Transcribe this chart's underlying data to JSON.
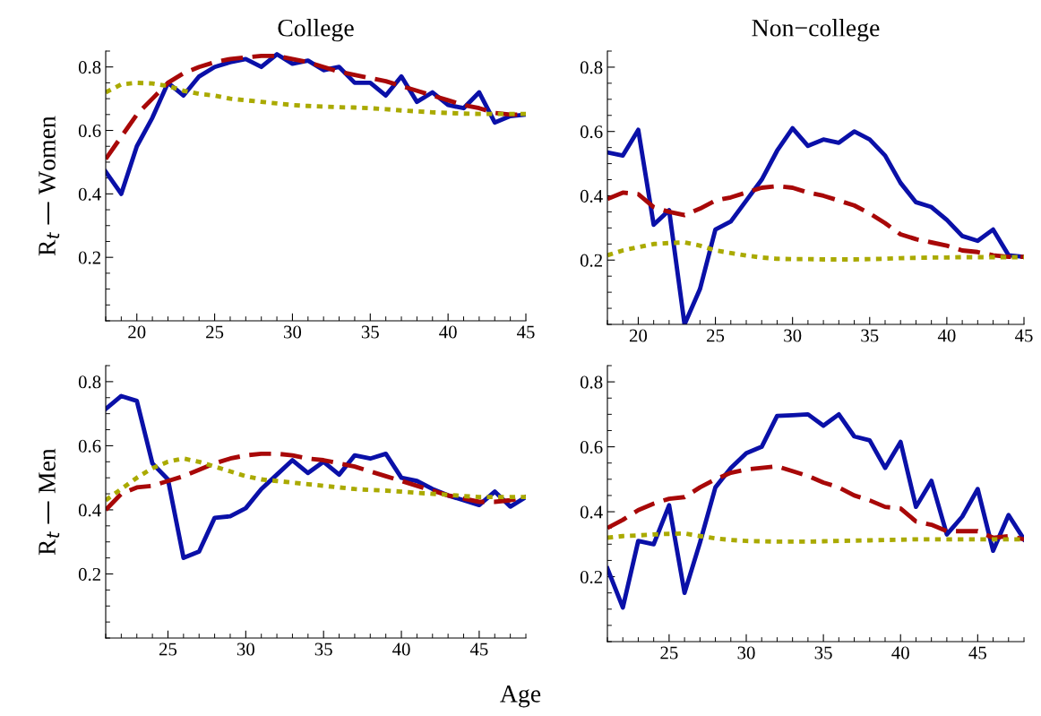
{
  "chart_data": [
    {
      "type": "line",
      "title": "College",
      "ylabel": "R$_{t}$ — Women",
      "x": [
        18,
        19,
        20,
        21,
        22,
        23,
        24,
        25,
        26,
        27,
        28,
        29,
        30,
        31,
        32,
        33,
        34,
        35,
        36,
        37,
        38,
        39,
        40,
        41,
        42,
        43,
        44,
        45
      ],
      "xlim": [
        18,
        45
      ],
      "xticks": [
        20,
        25,
        30,
        35,
        40,
        45
      ],
      "ylim": [
        0,
        0.85
      ],
      "yticks": [
        0.2,
        0.4,
        0.6,
        0.8
      ],
      "series": [
        {
          "color": "#0a10a8",
          "line_style": "solid",
          "values": [
            0.47,
            0.4,
            0.55,
            0.64,
            0.75,
            0.71,
            0.77,
            0.8,
            0.815,
            0.825,
            0.8,
            0.84,
            0.81,
            0.82,
            0.79,
            0.8,
            0.75,
            0.75,
            0.71,
            0.77,
            0.69,
            0.72,
            0.68,
            0.67,
            0.72,
            0.625,
            0.645,
            0.65
          ]
        },
        {
          "color": "#a80808",
          "line_style": "dashed",
          "values": [
            0.51,
            0.58,
            0.65,
            0.7,
            0.75,
            0.78,
            0.8,
            0.815,
            0.825,
            0.83,
            0.835,
            0.835,
            0.825,
            0.815,
            0.8,
            0.785,
            0.775,
            0.765,
            0.755,
            0.74,
            0.725,
            0.71,
            0.695,
            0.68,
            0.67,
            0.655,
            0.65,
            0.65
          ]
        },
        {
          "color": "#aaaa00",
          "line_style": "dotted",
          "values": [
            0.72,
            0.745,
            0.75,
            0.748,
            0.74,
            0.725,
            0.715,
            0.71,
            0.7,
            0.695,
            0.69,
            0.685,
            0.68,
            0.677,
            0.675,
            0.673,
            0.672,
            0.67,
            0.667,
            0.663,
            0.66,
            0.657,
            0.655,
            0.653,
            0.652,
            0.652,
            0.652,
            0.652
          ]
        }
      ]
    },
    {
      "type": "line",
      "title": "Non−college",
      "x": [
        18,
        19,
        20,
        21,
        22,
        23,
        24,
        25,
        26,
        27,
        28,
        29,
        30,
        31,
        32,
        33,
        34,
        35,
        36,
        37,
        38,
        39,
        40,
        41,
        42,
        43,
        44,
        45
      ],
      "xlim": [
        18,
        45
      ],
      "xticks": [
        20,
        25,
        30,
        35,
        40,
        45
      ],
      "ylim": [
        0,
        0.85
      ],
      "yticks": [
        0.2,
        0.4,
        0.6,
        0.8
      ],
      "series": [
        {
          "color": "#0a10a8",
          "line_style": "solid",
          "values": [
            0.535,
            0.525,
            0.605,
            0.31,
            0.355,
            0.0,
            0.11,
            0.295,
            0.32,
            0.385,
            0.45,
            0.54,
            0.61,
            0.555,
            0.575,
            0.565,
            0.6,
            0.575,
            0.525,
            0.44,
            0.38,
            0.365,
            0.325,
            0.275,
            0.26,
            0.295,
            0.215,
            0.21
          ]
        },
        {
          "color": "#a80808",
          "line_style": "dashed",
          "values": [
            0.39,
            0.41,
            0.405,
            0.365,
            0.35,
            0.34,
            0.36,
            0.385,
            0.395,
            0.41,
            0.425,
            0.43,
            0.425,
            0.41,
            0.4,
            0.385,
            0.37,
            0.345,
            0.315,
            0.28,
            0.265,
            0.255,
            0.245,
            0.23,
            0.225,
            0.215,
            0.21,
            0.21
          ]
        },
        {
          "color": "#aaaa00",
          "line_style": "dotted",
          "values": [
            0.215,
            0.23,
            0.24,
            0.25,
            0.253,
            0.255,
            0.245,
            0.23,
            0.222,
            0.214,
            0.208,
            0.204,
            0.203,
            0.203,
            0.202,
            0.202,
            0.202,
            0.203,
            0.204,
            0.206,
            0.207,
            0.208,
            0.208,
            0.209,
            0.209,
            0.209,
            0.209,
            0.209
          ]
        }
      ]
    },
    {
      "type": "line",
      "ylabel": "R$_{t}$ — Men",
      "xlabel": "Age",
      "x": [
        21,
        22,
        23,
        24,
        25,
        26,
        27,
        28,
        29,
        30,
        31,
        32,
        33,
        34,
        35,
        36,
        37,
        38,
        39,
        40,
        41,
        42,
        43,
        44,
        45,
        46,
        47,
        48
      ],
      "xlim": [
        21,
        48
      ],
      "xticks": [
        25,
        30,
        35,
        40,
        45
      ],
      "ylim": [
        0,
        0.85
      ],
      "yticks": [
        0.2,
        0.4,
        0.6,
        0.8
      ],
      "series": [
        {
          "color": "#0a10a8",
          "line_style": "solid",
          "values": [
            0.715,
            0.755,
            0.74,
            0.545,
            0.495,
            0.25,
            0.27,
            0.375,
            0.38,
            0.405,
            0.465,
            0.51,
            0.555,
            0.515,
            0.55,
            0.51,
            0.57,
            0.56,
            0.575,
            0.5,
            0.49,
            0.465,
            0.445,
            0.43,
            0.415,
            0.457,
            0.41,
            0.44
          ]
        },
        {
          "color": "#a80808",
          "line_style": "dashed",
          "values": [
            0.4,
            0.45,
            0.47,
            0.475,
            0.49,
            0.505,
            0.525,
            0.545,
            0.56,
            0.57,
            0.575,
            0.575,
            0.57,
            0.56,
            0.555,
            0.545,
            0.535,
            0.52,
            0.505,
            0.49,
            0.475,
            0.46,
            0.445,
            0.435,
            0.425,
            0.425,
            0.43,
            0.44
          ]
        },
        {
          "color": "#aaaa00",
          "line_style": "dotted",
          "values": [
            0.43,
            0.465,
            0.5,
            0.53,
            0.55,
            0.56,
            0.55,
            0.535,
            0.52,
            0.505,
            0.495,
            0.49,
            0.485,
            0.48,
            0.475,
            0.47,
            0.465,
            0.462,
            0.46,
            0.457,
            0.453,
            0.45,
            0.447,
            0.443,
            0.44,
            0.44,
            0.44,
            0.44
          ]
        }
      ]
    },
    {
      "type": "line",
      "x": [
        21,
        22,
        23,
        24,
        25,
        26,
        27,
        28,
        29,
        30,
        31,
        32,
        33,
        34,
        35,
        36,
        37,
        38,
        39,
        40,
        41,
        42,
        43,
        44,
        45,
        46,
        47,
        48
      ],
      "xlim": [
        21,
        48
      ],
      "xticks": [
        25,
        30,
        35,
        40,
        45
      ],
      "ylim": [
        0,
        0.85
      ],
      "yticks": [
        0.2,
        0.4,
        0.6,
        0.8
      ],
      "series": [
        {
          "color": "#0a10a8",
          "line_style": "solid",
          "values": [
            0.225,
            0.105,
            0.31,
            0.3,
            0.42,
            0.15,
            0.305,
            0.475,
            0.535,
            0.58,
            0.6,
            0.695,
            0.697,
            0.7,
            0.665,
            0.7,
            0.632,
            0.62,
            0.535,
            0.615,
            0.415,
            0.495,
            0.33,
            0.385,
            0.47,
            0.28,
            0.39,
            0.315
          ]
        },
        {
          "color": "#a80808",
          "line_style": "dashed",
          "values": [
            0.35,
            0.375,
            0.405,
            0.425,
            0.44,
            0.445,
            0.475,
            0.5,
            0.52,
            0.53,
            0.535,
            0.54,
            0.525,
            0.51,
            0.49,
            0.475,
            0.45,
            0.435,
            0.415,
            0.41,
            0.37,
            0.36,
            0.34,
            0.34,
            0.34,
            0.32,
            0.325,
            0.315
          ]
        },
        {
          "color": "#aaaa00",
          "line_style": "dotted",
          "values": [
            0.32,
            0.325,
            0.327,
            0.33,
            0.332,
            0.333,
            0.325,
            0.318,
            0.313,
            0.31,
            0.309,
            0.308,
            0.308,
            0.308,
            0.309,
            0.31,
            0.311,
            0.312,
            0.313,
            0.314,
            0.315,
            0.315,
            0.315,
            0.315,
            0.315,
            0.315,
            0.315,
            0.315
          ]
        }
      ]
    }
  ]
}
